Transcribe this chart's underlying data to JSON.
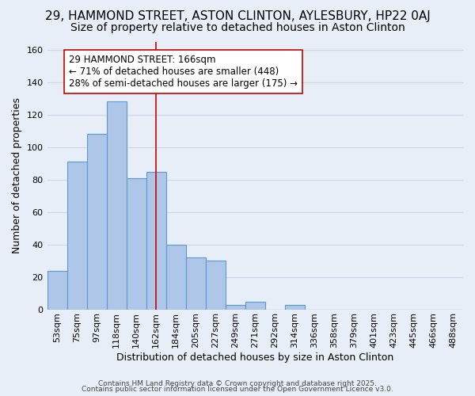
{
  "title1": "29, HAMMOND STREET, ASTON CLINTON, AYLESBURY, HP22 0AJ",
  "title2": "Size of property relative to detached houses in Aston Clinton",
  "xlabel": "Distribution of detached houses by size in Aston Clinton",
  "ylabel": "Number of detached properties",
  "bin_labels": [
    "53sqm",
    "75sqm",
    "97sqm",
    "118sqm",
    "140sqm",
    "162sqm",
    "184sqm",
    "205sqm",
    "227sqm",
    "249sqm",
    "271sqm",
    "292sqm",
    "314sqm",
    "336sqm",
    "358sqm",
    "379sqm",
    "401sqm",
    "423sqm",
    "445sqm",
    "466sqm",
    "488sqm"
  ],
  "bar_values": [
    24,
    91,
    108,
    128,
    81,
    85,
    40,
    32,
    30,
    3,
    5,
    0,
    3,
    0,
    0,
    0,
    0,
    0,
    0,
    0,
    0
  ],
  "bar_color": "#aec6e8",
  "bar_edge_color": "#5b9bd5",
  "vline_pos": 5.5,
  "vline_color": "#cc0000",
  "annotation_text": "29 HAMMOND STREET: 166sqm\n← 71% of detached houses are smaller (448)\n28% of semi-detached houses are larger (175) →",
  "annotation_box_color": "#ffffff",
  "annotation_box_edge": "#cc0000",
  "ylim": [
    0,
    165
  ],
  "yticks": [
    0,
    20,
    40,
    60,
    80,
    100,
    120,
    140,
    160
  ],
  "grid_color": "#d0d8e8",
  "background_color": "#e8eef8",
  "footer1": "Contains HM Land Registry data © Crown copyright and database right 2025.",
  "footer2": "Contains public sector information licensed under the Open Government Licence v3.0.",
  "title_fontsize": 11,
  "subtitle_fontsize": 10,
  "axis_label_fontsize": 9,
  "tick_fontsize": 8,
  "annotation_fontsize": 8.5,
  "footer_fontsize": 6.5
}
